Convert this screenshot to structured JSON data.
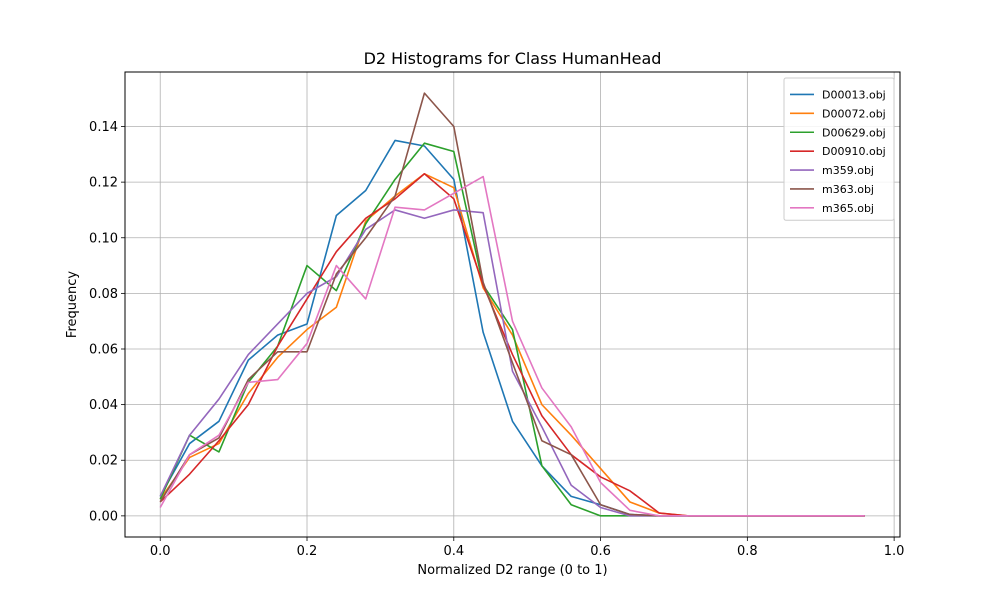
{
  "chart_data": {
    "type": "line",
    "title": "D2 Histograms for Class HumanHead",
    "xlabel": "Normalized D2 range (0 to 1)",
    "ylabel": "Frequency",
    "xlim": [
      -0.048,
      1.008
    ],
    "ylim": [
      -0.0076,
      0.1596
    ],
    "xticks": [
      0.0,
      0.2,
      0.4,
      0.6,
      0.8,
      1.0
    ],
    "yticks": [
      0.0,
      0.02,
      0.04,
      0.06,
      0.08,
      0.1,
      0.12,
      0.14
    ],
    "grid": true,
    "legend_position": "top-right",
    "x": [
      0.0,
      0.04,
      0.08,
      0.12,
      0.16,
      0.2,
      0.24,
      0.28,
      0.32,
      0.36,
      0.4,
      0.44,
      0.48,
      0.52,
      0.56,
      0.6,
      0.64,
      0.68,
      0.72,
      0.76,
      0.8,
      0.84,
      0.88,
      0.92,
      0.96
    ],
    "series": [
      {
        "name": "D00013.obj",
        "color": "#1f77b4",
        "values": [
          0.007,
          0.026,
          0.034,
          0.056,
          0.065,
          0.069,
          0.108,
          0.117,
          0.135,
          0.133,
          0.121,
          0.066,
          0.034,
          0.018,
          0.007,
          0.004,
          0.0005,
          0.0,
          0.0,
          0.0,
          0.0,
          0.0,
          0.0,
          0.0,
          0.0
        ]
      },
      {
        "name": "D00072.obj",
        "color": "#ff7f0e",
        "values": [
          0.006,
          0.021,
          0.026,
          0.044,
          0.057,
          0.067,
          0.075,
          0.106,
          0.115,
          0.123,
          0.118,
          0.082,
          0.065,
          0.04,
          0.029,
          0.017,
          0.005,
          0.001,
          0.0,
          0.0,
          0.0,
          0.0,
          0.0,
          0.0,
          0.0
        ]
      },
      {
        "name": "D00629.obj",
        "color": "#2ca02c",
        "values": [
          0.006,
          0.029,
          0.023,
          0.048,
          0.061,
          0.09,
          0.081,
          0.105,
          0.121,
          0.134,
          0.131,
          0.083,
          0.067,
          0.018,
          0.004,
          0.0,
          0.0,
          0.0,
          0.0,
          0.0,
          0.0,
          0.0,
          0.0,
          0.0,
          0.0
        ]
      },
      {
        "name": "D00910.obj",
        "color": "#d62728",
        "values": [
          0.005,
          0.015,
          0.027,
          0.04,
          0.061,
          0.078,
          0.095,
          0.107,
          0.114,
          0.123,
          0.114,
          0.083,
          0.058,
          0.036,
          0.022,
          0.014,
          0.009,
          0.001,
          0.0,
          0.0,
          0.0,
          0.0,
          0.0,
          0.0,
          0.0
        ]
      },
      {
        "name": "m359.obj",
        "color": "#9467bd",
        "values": [
          0.007,
          0.029,
          0.042,
          0.058,
          0.069,
          0.08,
          0.086,
          0.103,
          0.11,
          0.107,
          0.11,
          0.109,
          0.052,
          0.032,
          0.011,
          0.003,
          0.0,
          0.0,
          0.0,
          0.0,
          0.0,
          0.0,
          0.0,
          0.0,
          0.0
        ]
      },
      {
        "name": "m363.obj",
        "color": "#8c564b",
        "values": [
          0.005,
          0.022,
          0.028,
          0.049,
          0.059,
          0.059,
          0.087,
          0.1,
          0.115,
          0.152,
          0.14,
          0.084,
          0.055,
          0.027,
          0.022,
          0.004,
          0.0005,
          0.0,
          0.0,
          0.0,
          0.0,
          0.0,
          0.0,
          0.0,
          0.0
        ]
      },
      {
        "name": "m365.obj",
        "color": "#e377c2",
        "values": [
          0.003,
          0.022,
          0.029,
          0.048,
          0.049,
          0.062,
          0.09,
          0.078,
          0.111,
          0.11,
          0.116,
          0.122,
          0.07,
          0.046,
          0.032,
          0.012,
          0.002,
          0.0,
          0.0,
          0.0,
          0.0,
          0.0,
          0.0,
          0.0,
          0.0
        ]
      }
    ]
  }
}
